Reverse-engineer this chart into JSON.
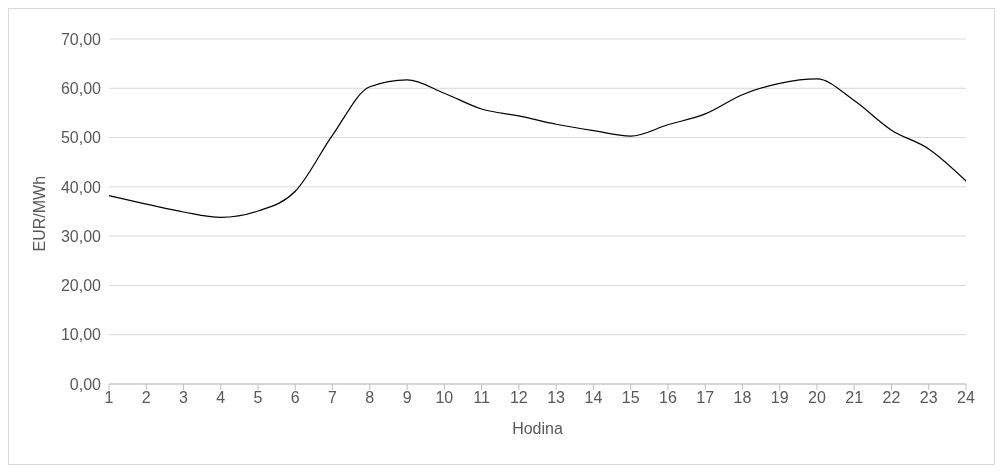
{
  "chart_data": {
    "type": "line",
    "xlabel": "Hodina",
    "ylabel": "EUR/MWh",
    "x": [
      1,
      2,
      3,
      4,
      5,
      6,
      7,
      8,
      9,
      10,
      11,
      12,
      13,
      14,
      15,
      16,
      17,
      18,
      19,
      20,
      21,
      22,
      23,
      24
    ],
    "series": [
      {
        "color": "#000000",
        "values": [
          38.2,
          36.5,
          34.9,
          33.8,
          35.1,
          39.1,
          50.5,
          60.3,
          61.7,
          59.0,
          55.8,
          54.4,
          52.7,
          51.4,
          50.3,
          52.6,
          54.8,
          58.7,
          61.0,
          61.9,
          57.5,
          51.5,
          47.7,
          41.2
        ]
      }
    ],
    "xlim": [
      1,
      24
    ],
    "xticks": [
      1,
      2,
      3,
      4,
      5,
      6,
      7,
      8,
      9,
      10,
      11,
      12,
      13,
      14,
      15,
      16,
      17,
      18,
      19,
      20,
      21,
      22,
      23,
      24
    ],
    "ylim": [
      0,
      70
    ],
    "yticks": [
      {
        "value": 0,
        "label": "0,00"
      },
      {
        "value": 10,
        "label": "10,00"
      },
      {
        "value": 20,
        "label": "20,00"
      },
      {
        "value": 30,
        "label": "30,00"
      },
      {
        "value": 40,
        "label": "40,00"
      },
      {
        "value": 50,
        "label": "50,00"
      },
      {
        "value": 60,
        "label": "60,00"
      },
      {
        "value": 70,
        "label": "70,00"
      }
    ],
    "grid": "y",
    "legend": false,
    "marker": "none",
    "line_style": "solid"
  }
}
